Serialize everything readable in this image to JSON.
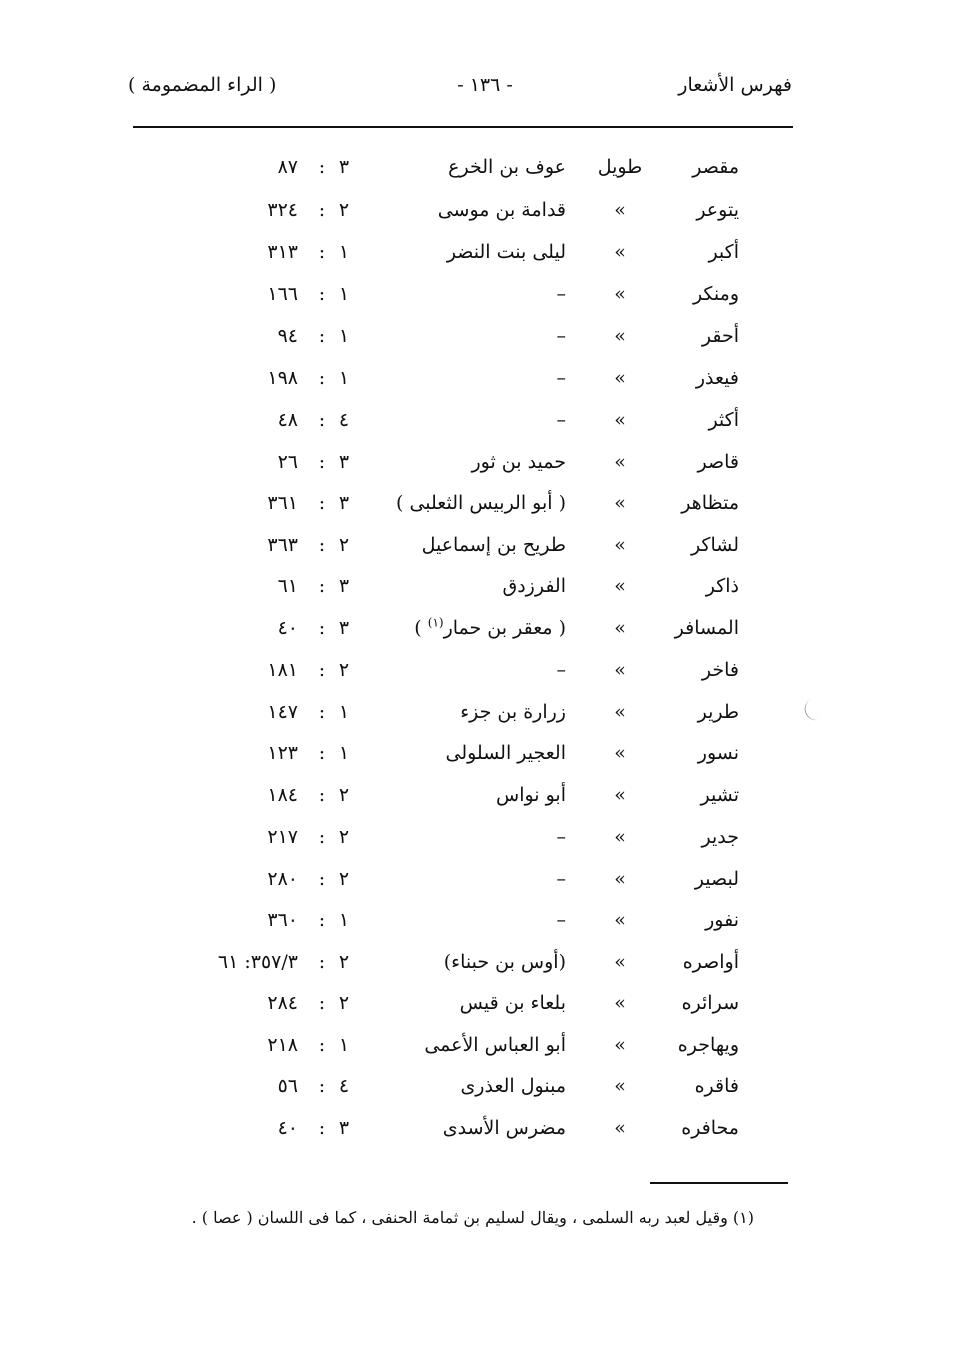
{
  "header": {
    "right": "فهرس الأشعار",
    "page_number": "- ١٣٦ -",
    "left": "( الراء المضمومة )"
  },
  "rows": [
    {
      "word": "مقصر",
      "meter": "طويل",
      "poet": "عوف بن الخرع",
      "vol": "٣",
      "page": "٨٧"
    },
    {
      "word": "يتوعر",
      "meter": "»",
      "poet": "قدامة بن موسى",
      "vol": "٢",
      "page": "٣٢٤"
    },
    {
      "word": "أكبر",
      "meter": "»",
      "poet": "ليلى بنت النضر",
      "vol": "١",
      "page": "٣١٣"
    },
    {
      "word": "ومنكر",
      "meter": "»",
      "poet": "–",
      "vol": "١",
      "page": "١٦٦"
    },
    {
      "word": "أحقر",
      "meter": "»",
      "poet": "–",
      "vol": "١",
      "page": "٩٤"
    },
    {
      "word": "فيعذر",
      "meter": "»",
      "poet": "–",
      "vol": "١",
      "page": "١٩٨"
    },
    {
      "word": "أكثر",
      "meter": "»",
      "poet": "–",
      "vol": "٤",
      "page": "٤٨"
    },
    {
      "word": "قاصر",
      "meter": "»",
      "poet": "حميد بن ثور",
      "vol": "٣",
      "page": "٢٦"
    },
    {
      "word": "متظاهر",
      "meter": "»",
      "poet": "( أبو الربيس الثعلبى )",
      "vol": "٣",
      "page": "٣٦١"
    },
    {
      "word": "لشاكر",
      "meter": "»",
      "poet": "طريح بن إسماعيل",
      "vol": "٢",
      "page": "٣٦٣"
    },
    {
      "word": "ذاكر",
      "meter": "»",
      "poet": "الفرزدق",
      "vol": "٣",
      "page": "٦١"
    },
    {
      "word": "المسافر",
      "meter": "»",
      "poet": "( معقر بن حمار",
      "poet_note": "(١)",
      "poet_close": " )",
      "vol": "٣",
      "page": "٤٠"
    },
    {
      "word": "فاخر",
      "meter": "»",
      "poet": "–",
      "vol": "٢",
      "page": "١٨١"
    },
    {
      "word": "طرير",
      "meter": "»",
      "poet": "زرارة بن جزء",
      "vol": "١",
      "page": "١٤٧"
    },
    {
      "word": "نسور",
      "meter": "»",
      "poet": "العجير السلولى",
      "vol": "١",
      "page": "١٢٣"
    },
    {
      "word": "تشير",
      "meter": "»",
      "poet": "أبو نواس",
      "vol": "٢",
      "page": "١٨٤"
    },
    {
      "word": "جدير",
      "meter": "»",
      "poet": "–",
      "vol": "٢",
      "page": "٢١٧"
    },
    {
      "word": "لبصير",
      "meter": "»",
      "poet": "–",
      "vol": "٢",
      "page": "٢٨٠"
    },
    {
      "word": "نفور",
      "meter": "»",
      "poet": "–",
      "vol": "١",
      "page": "٣٦٠"
    },
    {
      "word": "أواصره",
      "meter": "»",
      "poet": "(أوس بن حبناء)",
      "vol": "٢",
      "page": "٣٥٧/٣: ٦١"
    },
    {
      "word": "سرائره",
      "meter": "»",
      "poet": "بلعاء بن قيس",
      "vol": "٢",
      "page": "٢٨٤"
    },
    {
      "word": "ويهاجره",
      "meter": "»",
      "poet": "أبو العباس الأعمى",
      "vol": "١",
      "page": "٢١٨"
    },
    {
      "word": "فاقره",
      "meter": "»",
      "poet": "مبنول العذرى",
      "vol": "٤",
      "page": "٥٦"
    },
    {
      "word": "محافره",
      "meter": "»",
      "poet": "مضرس الأسدى",
      "vol": "٣",
      "page": "٤٠"
    }
  ],
  "colon": ":",
  "footnote": "(١) وقيل لعبد ربه السلمى ، ويقال لسليم بن ثمامة الحنفى ، كما فى اللسان ( عصا ) ."
}
